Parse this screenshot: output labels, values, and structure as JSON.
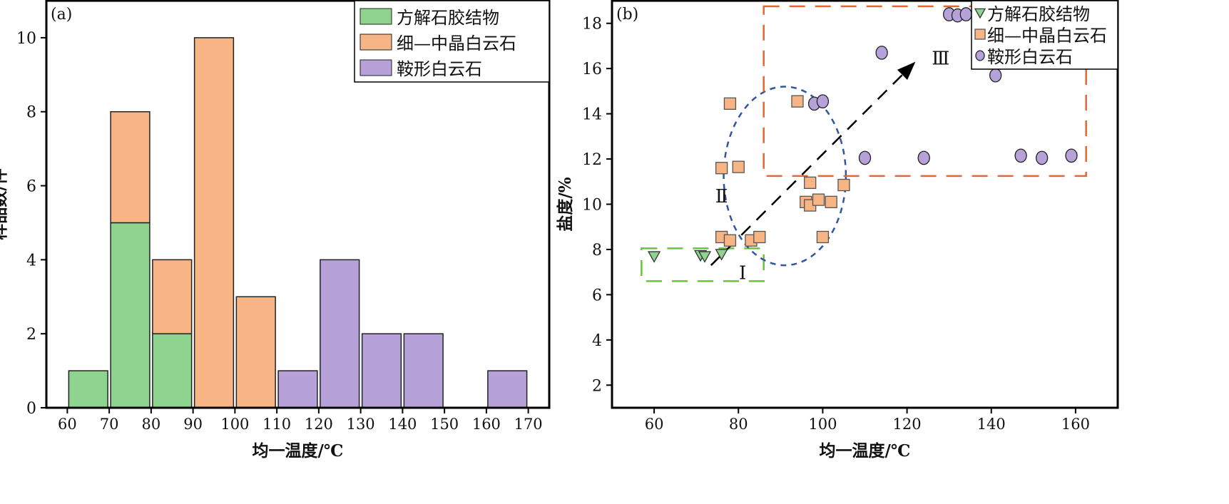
{
  "colors": {
    "green": "#8ed48f",
    "orange": "#f7b586",
    "purple": "#b6a2d8",
    "orangeBox": "#e8652f",
    "greenBox": "#6cc23a",
    "ellipse": "#2f55a4"
  },
  "chart_data": [
    {
      "type": "bar",
      "panel_label": "(a)",
      "xlabel": "均一温度/℃",
      "ylabel": "样品数/件",
      "xlim": [
        55,
        175
      ],
      "ylim": [
        0,
        11
      ],
      "xticks": [
        60,
        70,
        80,
        90,
        100,
        110,
        120,
        130,
        140,
        150,
        160,
        170
      ],
      "yticks": [
        0,
        2,
        4,
        6,
        8,
        10
      ],
      "legend": [
        "方解石胶结物",
        "细—中晶白云石",
        "鞍形白云石"
      ],
      "legend_position": "top-right",
      "bins": [
        [
          60,
          70
        ],
        [
          70,
          80
        ],
        [
          80,
          90
        ],
        [
          90,
          100
        ],
        [
          100,
          110
        ],
        [
          110,
          120
        ],
        [
          120,
          130
        ],
        [
          130,
          140
        ],
        [
          140,
          150
        ],
        [
          150,
          160
        ],
        [
          160,
          170
        ]
      ],
      "series": [
        {
          "name": "方解石胶结物",
          "color": "green",
          "values": [
            1,
            5,
            2,
            0,
            0,
            0,
            0,
            0,
            0,
            0,
            0
          ]
        },
        {
          "name": "细—中晶白云石",
          "color": "orange",
          "values": [
            0,
            3,
            2,
            10,
            3,
            0,
            0,
            0,
            0,
            0,
            0
          ]
        },
        {
          "name": "鞍形白云石",
          "color": "purple",
          "values": [
            0,
            0,
            0,
            0,
            0,
            1,
            4,
            2,
            2,
            0,
            1
          ]
        }
      ]
    },
    {
      "type": "scatter",
      "panel_label": "(b)",
      "xlabel": "均一温度/℃",
      "ylabel": "盐度/%",
      "xlim": [
        50,
        170
      ],
      "ylim": [
        1,
        19
      ],
      "xticks": [
        60,
        80,
        100,
        120,
        140,
        160
      ],
      "yticks": [
        2,
        4,
        6,
        8,
        10,
        12,
        14,
        16,
        18
      ],
      "legend_position": "top-right",
      "series": [
        {
          "name": "方解石胶结物",
          "marker": "triangle",
          "color": "green",
          "points": [
            [
              60,
              7.7
            ],
            [
              71,
              7.75
            ],
            [
              72,
              7.7
            ],
            [
              76,
              7.8
            ]
          ]
        },
        {
          "name": "细—中晶白云石",
          "marker": "square",
          "color": "orange",
          "points": [
            [
              78,
              14.45
            ],
            [
              76,
              11.6
            ],
            [
              80,
              11.65
            ],
            [
              76,
              8.55
            ],
            [
              78,
              8.4
            ],
            [
              83,
              8.4
            ],
            [
              85,
              8.55
            ],
            [
              94,
              14.55
            ],
            [
              97,
              10.95
            ],
            [
              96,
              10.1
            ],
            [
              97,
              9.95
            ],
            [
              99,
              10.2
            ],
            [
              102,
              10.1
            ],
            [
              105,
              10.85
            ],
            [
              100,
              8.55
            ]
          ]
        },
        {
          "name": "鞍形白云石",
          "marker": "circle",
          "color": "purple",
          "points": [
            [
              130,
              18.4
            ],
            [
              132,
              18.35
            ],
            [
              134,
              18.4
            ],
            [
              114,
              16.7
            ],
            [
              141,
              15.7
            ],
            [
              98,
              14.45
            ],
            [
              100,
              14.55
            ],
            [
              110,
              12.05
            ],
            [
              124,
              12.05
            ],
            [
              147,
              12.15
            ],
            [
              152,
              12.05
            ],
            [
              159,
              12.15
            ]
          ]
        }
      ],
      "regions": [
        {
          "label": "Ⅰ",
          "shape": "rect",
          "x": [
            57,
            86
          ],
          "y": [
            6.6,
            8.05
          ],
          "color": "greenBox",
          "label_at": [
            81,
            7
          ]
        },
        {
          "label": "Ⅱ",
          "shape": "ellipse",
          "center": [
            91,
            11.25
          ],
          "radii": [
            14.5,
            3.95
          ],
          "color": "ellipse",
          "label_at": [
            76,
            10.4
          ]
        },
        {
          "label": "Ⅲ",
          "shape": "rect",
          "x": [
            86,
            162.5
          ],
          "y": [
            11.25,
            18.75
          ],
          "color": "orangeBox",
          "label_at": [
            128,
            16.5
          ]
        }
      ],
      "arrow": {
        "from": [
          73.5,
          7.3
        ],
        "to": [
          122,
          16.3
        ]
      }
    }
  ]
}
